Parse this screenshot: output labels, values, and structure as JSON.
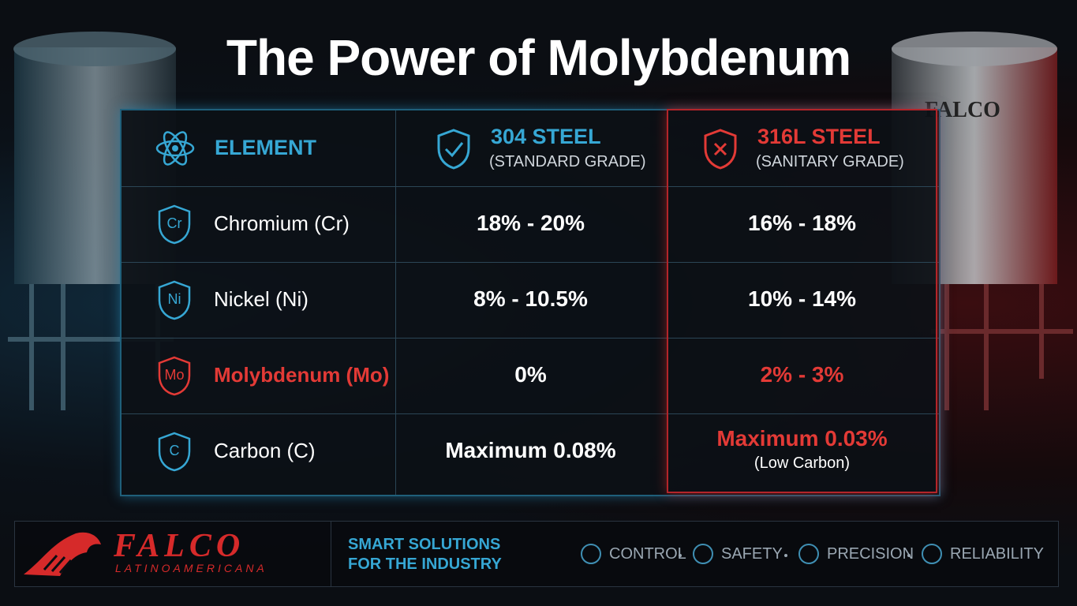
{
  "title": "The Power of Molybdenum",
  "tank_logo": "FALCO",
  "table": {
    "header": [
      {
        "text": "ELEMENT"
      },
      {
        "text": "304 STEEL",
        "sub": "(STANDARD GRADE)"
      },
      {
        "text": "316L STEEL",
        "sub": "(SANITARY GRADE)"
      }
    ],
    "rows": [
      {
        "symbol": "Cr",
        "element": "Chromium (Cr)",
        "cells": [
          {
            "text": "18% - 20%"
          },
          {
            "text": "16% - 18%"
          }
        ]
      },
      {
        "symbol": "Ni",
        "element": "Nickel (Ni)",
        "cells": [
          {
            "text": "8% - 10.5%"
          },
          {
            "text": "10% - 14%"
          }
        ]
      },
      {
        "symbol": "Mo",
        "element": "Molybdenum (Mo)",
        "cells": [
          {
            "text": "0%"
          },
          {
            "text": "2% - 3%"
          }
        ]
      },
      {
        "symbol": "C",
        "element": "Carbon (C)",
        "cells": [
          {
            "text": "Maximum 0.08%"
          },
          {
            "text": "Maximum 0.03%",
            "note": "(Low Carbon)"
          }
        ]
      }
    ]
  },
  "footer": {
    "brand": "FALCO",
    "brand_sub": "LATINOAMERICANA",
    "tagline": [
      "SMART SOLUTIONS",
      "FOR THE INDUSTRY"
    ],
    "values": [
      "CONTROL",
      "SAFETY",
      "PRECISION",
      "RELIABILITY"
    ]
  }
}
